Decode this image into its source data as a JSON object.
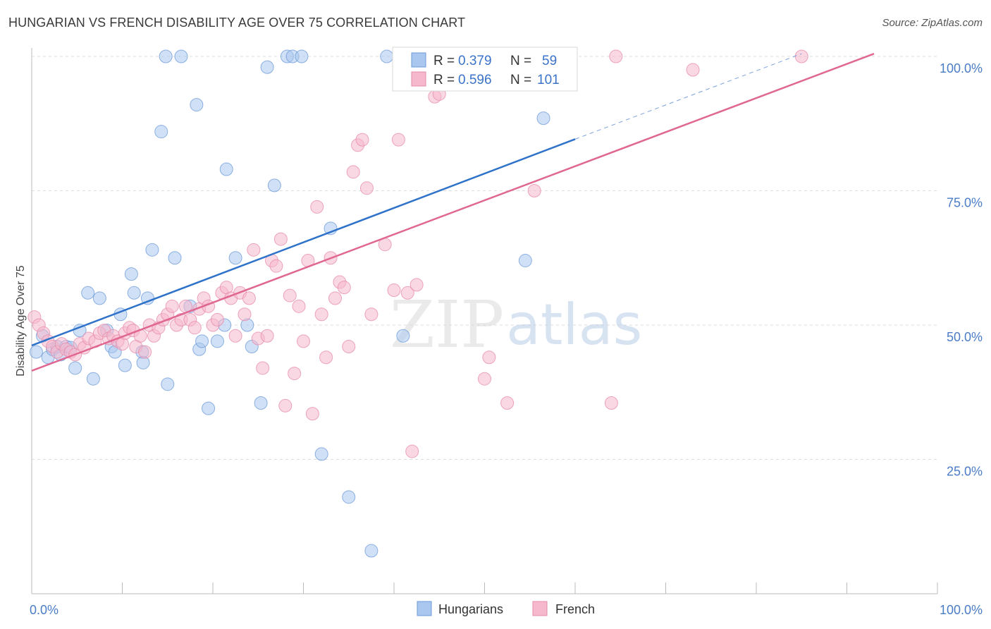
{
  "title": "HUNGARIAN VS FRENCH DISABILITY AGE OVER 75 CORRELATION CHART",
  "source": "Source: ZipAtlas.com",
  "watermark": {
    "zip": "ZIP",
    "atlas": "atlas"
  },
  "chart_data": {
    "type": "scatter",
    "xlabel": "",
    "ylabel": "Disability Age Over 75",
    "xlim": [
      0,
      100
    ],
    "ylim": [
      0,
      100
    ],
    "x_tick_labels": [
      {
        "value": 0,
        "label": "0.0%"
      },
      {
        "value": 100,
        "label": "100.0%"
      }
    ],
    "y_tick_labels": [
      {
        "value": 25,
        "label": "25.0%"
      },
      {
        "value": 50,
        "label": "50.0%"
      },
      {
        "value": 75,
        "label": "75.0%"
      },
      {
        "value": 100,
        "label": "100.0%"
      }
    ],
    "grid": true,
    "legend_placement": "top-center",
    "colors": {
      "hungarians_fill": "#a9c7ef",
      "hungarians_line": "#2f72c9",
      "french_fill": "#f5b8cc",
      "french_line": "#e06792"
    },
    "stats": [
      {
        "r_label": "R =",
        "r_value": "0.379",
        "n_label": "N =",
        "n_value": "59"
      },
      {
        "r_label": "R =",
        "r_value": "0.596",
        "n_label": "N =",
        "n_value": "101"
      }
    ],
    "series": [
      {
        "name": "Hungarians",
        "trend": {
          "x": [
            0,
            60
          ],
          "y": [
            46.2,
            84.6
          ],
          "dashed_to": [
            85,
            100.5
          ]
        },
        "points": [
          [
            0.5,
            45
          ],
          [
            1.2,
            48
          ],
          [
            1.8,
            44
          ],
          [
            2.3,
            45.5
          ],
          [
            2.8,
            46
          ],
          [
            3.2,
            44.5
          ],
          [
            3.8,
            46
          ],
          [
            4.3,
            45.8
          ],
          [
            4.8,
            42
          ],
          [
            5.3,
            49
          ],
          [
            6.2,
            56
          ],
          [
            6.8,
            40
          ],
          [
            7.5,
            55
          ],
          [
            8.3,
            49
          ],
          [
            8.8,
            46
          ],
          [
            9.2,
            45
          ],
          [
            9.8,
            52
          ],
          [
            10.3,
            42.5
          ],
          [
            11,
            59.5
          ],
          [
            11.3,
            56
          ],
          [
            12.2,
            45
          ],
          [
            12.3,
            43
          ],
          [
            12.8,
            55
          ],
          [
            13.3,
            64
          ],
          [
            14.3,
            86
          ],
          [
            14.8,
            100
          ],
          [
            15,
            39
          ],
          [
            15.8,
            62.5
          ],
          [
            16.5,
            100
          ],
          [
            17.5,
            53.5
          ],
          [
            18.2,
            91
          ],
          [
            18.5,
            45.5
          ],
          [
            18.8,
            47
          ],
          [
            19.5,
            34.5
          ],
          [
            20.5,
            47
          ],
          [
            21.3,
            50
          ],
          [
            21.5,
            79
          ],
          [
            22.5,
            62.5
          ],
          [
            23.8,
            50
          ],
          [
            24.3,
            46
          ],
          [
            25.3,
            35.5
          ],
          [
            26,
            98
          ],
          [
            26.8,
            76
          ],
          [
            28.2,
            100
          ],
          [
            28.8,
            100
          ],
          [
            29.8,
            100
          ],
          [
            32,
            26
          ],
          [
            33,
            68
          ],
          [
            35,
            18
          ],
          [
            37.5,
            8
          ],
          [
            39.2,
            100
          ],
          [
            41,
            48
          ],
          [
            54.5,
            62
          ],
          [
            56.5,
            88.5
          ]
        ]
      },
      {
        "name": "French",
        "trend": {
          "x": [
            0,
            93
          ],
          "y": [
            41.5,
            100.5
          ]
        },
        "points": [
          [
            0.3,
            51.5
          ],
          [
            0.8,
            50
          ],
          [
            1.3,
            48.5
          ],
          [
            1.8,
            47
          ],
          [
            2.3,
            46
          ],
          [
            2.8,
            45
          ],
          [
            3.3,
            46.5
          ],
          [
            3.8,
            45.5
          ],
          [
            4.3,
            45
          ],
          [
            4.8,
            44.5
          ],
          [
            5.3,
            46.5
          ],
          [
            5.8,
            45.8
          ],
          [
            6.3,
            47.5
          ],
          [
            7,
            47
          ],
          [
            7.5,
            48.5
          ],
          [
            8,
            49
          ],
          [
            8.5,
            47.5
          ],
          [
            9,
            48
          ],
          [
            9.5,
            47
          ],
          [
            10,
            46.5
          ],
          [
            10.3,
            48.5
          ],
          [
            10.8,
            49.5
          ],
          [
            11.2,
            49
          ],
          [
            11.5,
            46
          ],
          [
            12,
            48
          ],
          [
            12.5,
            45
          ],
          [
            13,
            50
          ],
          [
            13.5,
            48
          ],
          [
            14,
            49.5
          ],
          [
            14.5,
            51
          ],
          [
            15,
            52
          ],
          [
            15.5,
            53.5
          ],
          [
            16,
            50
          ],
          [
            16.5,
            51
          ],
          [
            17,
            53.5
          ],
          [
            17.5,
            51
          ],
          [
            18,
            49.5
          ],
          [
            18.5,
            53
          ],
          [
            19,
            55
          ],
          [
            19.5,
            53.5
          ],
          [
            20,
            50
          ],
          [
            20.5,
            51
          ],
          [
            21,
            56
          ],
          [
            21.5,
            57
          ],
          [
            22,
            55
          ],
          [
            22.5,
            48
          ],
          [
            23,
            56
          ],
          [
            23.5,
            52
          ],
          [
            24,
            55
          ],
          [
            24.5,
            64
          ],
          [
            25,
            47.5
          ],
          [
            25.5,
            42
          ],
          [
            26,
            48
          ],
          [
            26.5,
            62
          ],
          [
            27,
            61
          ],
          [
            27.5,
            66
          ],
          [
            28,
            35
          ],
          [
            28.5,
            55.5
          ],
          [
            29,
            41
          ],
          [
            29.5,
            53.5
          ],
          [
            30,
            47
          ],
          [
            30.5,
            62
          ],
          [
            31,
            33.5
          ],
          [
            31.5,
            72
          ],
          [
            32,
            52
          ],
          [
            32.5,
            44
          ],
          [
            33,
            62.5
          ],
          [
            33.5,
            55
          ],
          [
            34,
            58
          ],
          [
            34.5,
            57
          ],
          [
            35,
            46
          ],
          [
            35.5,
            78.5
          ],
          [
            36,
            83.5
          ],
          [
            36.5,
            84.5
          ],
          [
            37,
            75.5
          ],
          [
            37.5,
            52
          ],
          [
            39,
            65
          ],
          [
            40,
            56.5
          ],
          [
            40.5,
            84.5
          ],
          [
            41.5,
            56
          ],
          [
            42,
            26.5
          ],
          [
            42.5,
            57.5
          ],
          [
            43.5,
            99
          ],
          [
            44.5,
            92.5
          ],
          [
            45,
            93
          ],
          [
            47,
            99
          ],
          [
            48,
            100
          ],
          [
            50,
            40
          ],
          [
            50.5,
            44
          ],
          [
            52.5,
            35.5
          ],
          [
            55,
            100
          ],
          [
            55.5,
            75
          ],
          [
            64,
            35.5
          ],
          [
            64.5,
            100
          ],
          [
            73,
            97.5
          ],
          [
            85,
            100
          ]
        ]
      }
    ]
  },
  "bottom_legend": [
    {
      "label": "Hungarians"
    },
    {
      "label": "French"
    }
  ]
}
